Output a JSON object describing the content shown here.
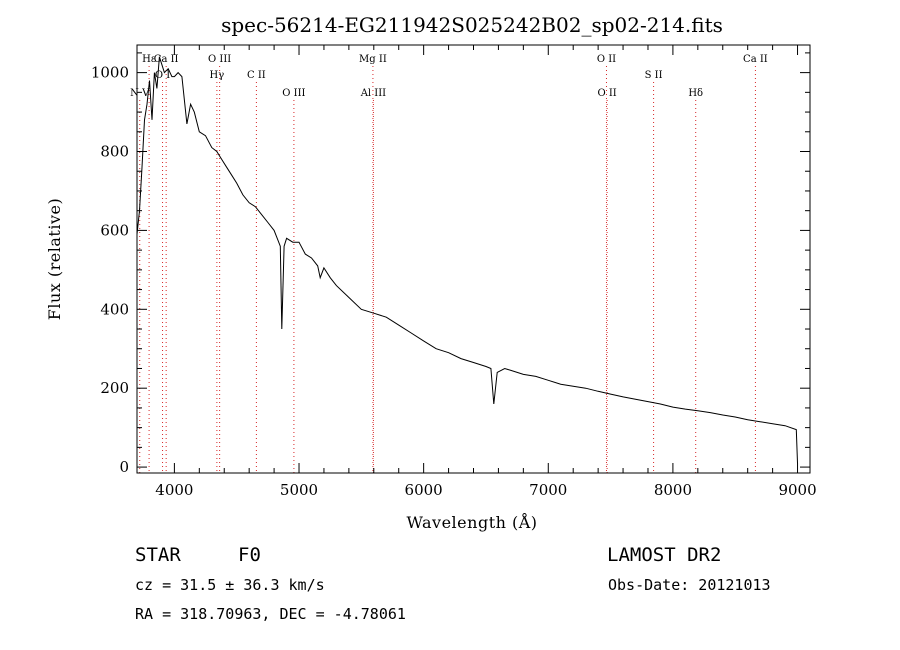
{
  "chart_data": {
    "type": "line",
    "title": "spec-56214-EG211942S025242B02_sp02-214.fits",
    "xlabel": "Wavelength (Å)",
    "ylabel": "Flux (relative)",
    "xlim": [
      3700,
      9100
    ],
    "ylim": [
      -15,
      1070
    ],
    "x_ticks": [
      4000,
      5000,
      6000,
      7000,
      8000,
      9000
    ],
    "y_ticks": [
      0,
      200,
      400,
      600,
      800,
      1000
    ],
    "grid": false,
    "line_color": "#000000",
    "marker_color": "#d62728",
    "spectral_lines": [
      {
        "label": "Ca II",
        "wavelength": 3934,
        "row": 1
      },
      {
        "label": "O III",
        "wavelength": 4363,
        "row": 1
      },
      {
        "label": "Mg II",
        "wavelength": 5593,
        "row": 1
      },
      {
        "label": "O II",
        "wavelength": 7467,
        "row": 1
      },
      {
        "label": "Ca II",
        "wavelength": 8662,
        "row": 1
      },
      {
        "label": "O I",
        "wavelength": 3905,
        "row": 2
      },
      {
        "label": "Hγ",
        "wavelength": 4341,
        "row": 2
      },
      {
        "label": "C II",
        "wavelength": 4658,
        "row": 2
      },
      {
        "label": "S II",
        "wavelength": 7845,
        "row": 2
      },
      {
        "label": "N V",
        "wavelength": 3722,
        "row": 3
      },
      {
        "label": "O III",
        "wavelength": 4959,
        "row": 3
      },
      {
        "label": "Al III",
        "wavelength": 5597,
        "row": 3
      },
      {
        "label": "O II",
        "wavelength": 7472,
        "row": 3
      },
      {
        "label": "Hδ",
        "wavelength": 8183,
        "row": 3
      },
      {
        "label": "Hε",
        "wavelength": 3797,
        "row": 1
      }
    ],
    "series": [
      {
        "x": [
          3700,
          3720,
          3740,
          3760,
          3780,
          3800,
          3820,
          3840,
          3860,
          3880,
          3900,
          3920,
          3950,
          3980,
          4000,
          4030,
          4060,
          4100,
          4130,
          4160,
          4200,
          4250,
          4300,
          4340,
          4380,
          4420,
          4460,
          4500,
          4550,
          4600,
          4650,
          4700,
          4750,
          4800,
          4850,
          4862,
          4880,
          4900,
          4950,
          5000,
          5050,
          5100,
          5150,
          5170,
          5200,
          5250,
          5300,
          5400,
          5500,
          5600,
          5700,
          5800,
          5900,
          6000,
          6100,
          6200,
          6300,
          6400,
          6500,
          6540,
          6563,
          6590,
          6650,
          6700,
          6800,
          6900,
          7000,
          7100,
          7200,
          7300,
          7400,
          7500,
          7600,
          7700,
          7800,
          7900,
          8000,
          8100,
          8200,
          8300,
          8400,
          8500,
          8600,
          8700,
          8800,
          8900,
          8990,
          9000
        ],
        "y": [
          590,
          650,
          760,
          880,
          920,
          980,
          880,
          1000,
          960,
          1040,
          1020,
          1000,
          1010,
          990,
          990,
          1000,
          990,
          870,
          920,
          900,
          850,
          840,
          810,
          800,
          780,
          760,
          740,
          720,
          690,
          670,
          660,
          640,
          620,
          600,
          560,
          350,
          560,
          580,
          570,
          570,
          540,
          530,
          510,
          480,
          505,
          480,
          460,
          430,
          400,
          390,
          380,
          360,
          340,
          320,
          300,
          290,
          275,
          265,
          255,
          250,
          160,
          240,
          250,
          245,
          235,
          230,
          220,
          210,
          205,
          200,
          192,
          185,
          178,
          172,
          166,
          160,
          152,
          147,
          143,
          138,
          132,
          127,
          120,
          115,
          110,
          105,
          95,
          10
        ]
      }
    ]
  },
  "footer": {
    "object": "STAR",
    "subclass": "F0",
    "survey": "LAMOST DR2",
    "cz": "cz = 31.5 ± 36.3 km/s",
    "obs_date": "Obs-Date: 20121013",
    "coords": "RA = 318.70963, DEC =  -4.78061"
  }
}
